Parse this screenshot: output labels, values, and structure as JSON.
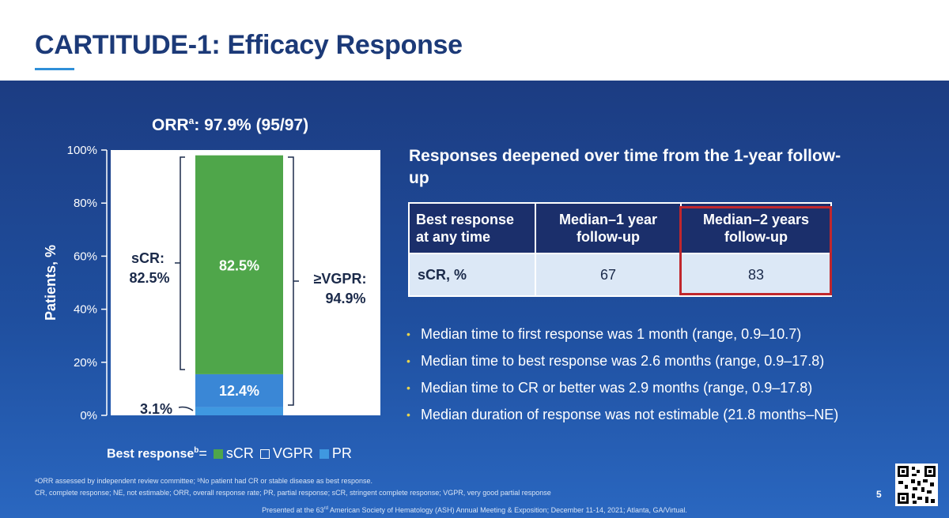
{
  "title": "CARTITUDE-1: Efficacy Response",
  "orr": {
    "label": "ORR",
    "superscript": "a",
    "value": ": 97.9% (95/97)"
  },
  "chart_data": {
    "type": "bar",
    "stacked": true,
    "categories": [
      "Best response"
    ],
    "series": [
      {
        "name": "PR",
        "values": [
          3.1
        ],
        "label": "3.1%",
        "color": "#3f98e0"
      },
      {
        "name": "VGPR",
        "values": [
          12.4
        ],
        "label": "12.4%",
        "color": "#3a87d6"
      },
      {
        "name": "sCR",
        "values": [
          82.5
        ],
        "label": "82.5%",
        "color": "#4fa64a"
      }
    ],
    "ylabel": "Patients, %",
    "yticks": [
      "0%",
      "20%",
      "40%",
      "60%",
      "80%",
      "100%"
    ],
    "ylim": [
      0,
      100
    ],
    "annotations": {
      "scr_bracket": {
        "line1": "sCR:",
        "line2": "82.5%"
      },
      "vgpr_bracket": {
        "line1": "≥VGPR:",
        "line2": "94.9%"
      }
    },
    "legend": {
      "prefix": "Best response",
      "prefix_sup": "b",
      "equals": " =",
      "items": [
        "sCR",
        "VGPR",
        "PR"
      ]
    }
  },
  "right": {
    "heading": "Responses deepened over time from the 1-year follow-up",
    "table": {
      "headers": [
        "Best response at any time",
        "Median–1 year follow-up",
        "Median–2 years follow-up"
      ],
      "row": [
        "sCR, %",
        "67",
        "83"
      ]
    },
    "bullets": [
      "Median time to first response was 1 month (range, 0.9–10.7)",
      "Median time to best response was 2.6 months (range, 0.9–17.8)",
      "Median time to CR or better was 2.9 months (range, 0.9–17.8)",
      "Median duration of response was not estimable (21.8 months–NE)"
    ]
  },
  "footnotes": {
    "line1": "ᵃORR assessed by independent review committee; ᵇNo patient had CR or stable disease as best response.",
    "line2": "CR, complete response; NE, not estimable; ORR, overall response rate; PR, partial response; sCR, stringent complete response; VGPR, very good partial response",
    "presented_pre": "Presented at the 63",
    "presented_sup": "rd",
    "presented_post": " American Society of Hematology (ASH) Annual Meeting & Exposition; December 11-14, 2021; Atlanta, GA/Virtual."
  },
  "page_number": "5",
  "colors": {
    "title": "#1c3a78",
    "panel": "#1f4f9f",
    "scr": "#4fa64a",
    "vgpr": "#3a87d6",
    "pr": "#3f98e0",
    "highlight": "#c0272d"
  }
}
